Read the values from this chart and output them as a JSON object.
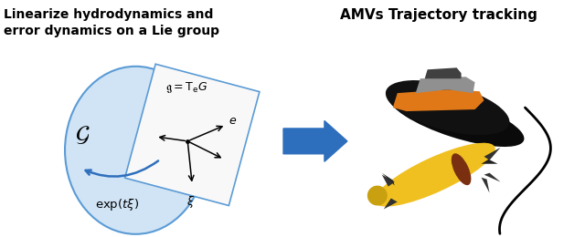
{
  "fig_width": 6.4,
  "fig_height": 2.6,
  "dpi": 100,
  "bg_color": "#ffffff",
  "left_title_line1": "Linearize hydrodynamics and",
  "left_title_line2": "error dynamics on a Lie group",
  "right_title": "AMVs Trajectory tracking",
  "ellipse_color": "#d0e4f5",
  "ellipse_edge": "#5b9bd5",
  "arrow_blue": "#2e6fbd"
}
